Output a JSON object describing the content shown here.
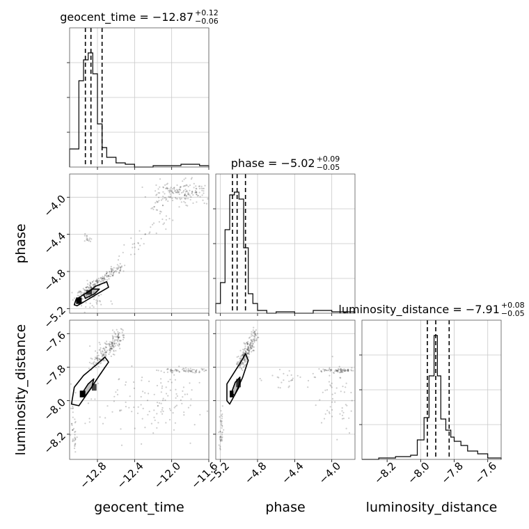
{
  "chart_data": {
    "type": "corner",
    "parameters": [
      "geocent_time",
      "phase",
      "luminosity_distance"
    ],
    "titles": [
      {
        "param": "geocent_time",
        "prefix": "geocent_time = ",
        "value": "−12.87",
        "plus": "+0.12",
        "minus": "−0.06"
      },
      {
        "param": "phase",
        "prefix": "phase = ",
        "value": "−5.02",
        "plus": "+0.09",
        "minus": "−0.05"
      },
      {
        "param": "luminosity_distance",
        "prefix": "luminosity_distance = ",
        "value": "−7.91",
        "plus": "+0.08",
        "minus": "−0.05"
      }
    ],
    "axis_ranges": {
      "geocent_time": [
        -13.1,
        -11.6
      ],
      "phase": [
        -5.25,
        -3.75
      ],
      "luminosity_distance": [
        -8.35,
        -7.52
      ]
    },
    "ticks": {
      "geocent_time": [
        -12.8,
        -12.4,
        -12.0,
        -11.6
      ],
      "phase": [
        -5.2,
        -4.8,
        -4.4,
        -4.0
      ],
      "luminosity_distance": [
        -8.2,
        -8.0,
        -7.8,
        -7.6
      ]
    },
    "tick_labels": {
      "geocent_time": [
        "−12.8",
        "−12.4",
        "−12.0",
        "−11.6"
      ],
      "phase": [
        "−5.2",
        "−4.8",
        "−4.4",
        "−4.0"
      ],
      "luminosity_distance": [
        "−8.2",
        "−8.0",
        "−7.8",
        "−7.6"
      ]
    },
    "quantiles": {
      "geocent_time": [
        -12.93,
        -12.87,
        -12.75
      ],
      "phase": [
        -5.07,
        -5.02,
        -4.93
      ],
      "luminosity_distance": [
        -7.96,
        -7.91,
        -7.83
      ]
    },
    "histograms": {
      "geocent_time": {
        "edges": [
          -13.1,
          -13.0,
          -12.95,
          -12.9,
          -12.85,
          -12.8,
          -12.75,
          -12.7,
          -12.6,
          -12.5,
          -12.4,
          -12.3,
          -12.2,
          -11.9,
          -11.7,
          -11.6
        ],
        "counts": [
          0.13,
          0.62,
          0.77,
          0.82,
          0.67,
          0.31,
          0.14,
          0.07,
          0.03,
          0.02,
          0.0,
          0.0,
          0.01,
          0.02,
          0.01
        ]
      },
      "phase": {
        "edges": [
          -5.25,
          -5.2,
          -5.15,
          -5.1,
          -5.05,
          -5.0,
          -4.95,
          -4.9,
          -4.85,
          -4.8,
          -4.7,
          -4.6,
          -4.4,
          -4.2,
          -4.0,
          -3.75
        ],
        "counts": [
          0.07,
          0.22,
          0.6,
          0.85,
          0.87,
          0.82,
          0.47,
          0.14,
          0.07,
          0.02,
          0.0,
          0.01,
          0.0,
          0.02,
          0.01
        ]
      },
      "luminosity_distance": {
        "edges": [
          -8.35,
          -8.25,
          -8.15,
          -8.06,
          -8.02,
          -7.98,
          -7.95,
          -7.92,
          -7.9,
          -7.88,
          -7.85,
          -7.82,
          -7.8,
          -7.76,
          -7.72,
          -7.66,
          -7.6,
          -7.52
        ],
        "counts": [
          0.0,
          0.01,
          0.02,
          0.03,
          0.14,
          0.3,
          0.6,
          0.89,
          0.6,
          0.29,
          0.21,
          0.16,
          0.13,
          0.1,
          0.06,
          0.04,
          0.01
        ]
      }
    },
    "contours": {
      "phase_vs_geocent_time": {
        "outer": [
          [
            -13.05,
            -5.16
          ],
          [
            -13.03,
            -5.1
          ],
          [
            -12.9,
            -5.02
          ],
          [
            -12.82,
            -4.96
          ],
          [
            -12.7,
            -4.91
          ],
          [
            -12.68,
            -4.97
          ],
          [
            -12.8,
            -5.04
          ],
          [
            -12.95,
            -5.13
          ],
          [
            -13.02,
            -5.17
          ]
        ],
        "inner": [
          [
            -12.95,
            -5.05
          ],
          [
            -12.85,
            -4.99
          ],
          [
            -12.78,
            -4.99
          ],
          [
            -12.83,
            -5.04
          ],
          [
            -12.93,
            -5.09
          ]
        ],
        "dense": [
          [
            -13.03,
            -5.15,
            -12.97,
            -5.08
          ],
          [
            -12.92,
            -5.05,
            -12.86,
            -5.0
          ]
        ]
      },
      "luminosity_distance_vs_geocent_time": {
        "outer": [
          [
            -13.08,
            -8.02
          ],
          [
            -13.05,
            -7.92
          ],
          [
            -12.95,
            -7.85
          ],
          [
            -12.8,
            -7.78
          ],
          [
            -12.72,
            -7.74
          ],
          [
            -12.68,
            -7.77
          ],
          [
            -12.78,
            -7.85
          ],
          [
            -12.9,
            -7.95
          ],
          [
            -13.0,
            -8.03
          ]
        ],
        "inner": [
          [
            -12.97,
            -7.96
          ],
          [
            -12.9,
            -7.9
          ],
          [
            -12.84,
            -7.87
          ],
          [
            -12.86,
            -7.92
          ],
          [
            -12.93,
            -7.97
          ]
        ],
        "dense": [
          [
            -12.99,
            -7.98,
            -12.93,
            -7.94
          ],
          [
            -12.86,
            -7.94,
            -12.81,
            -7.9
          ]
        ]
      },
      "luminosity_distance_vs_phase": {
        "outer": [
          [
            -5.13,
            -8.0
          ],
          [
            -5.13,
            -7.9
          ],
          [
            -5.05,
            -7.83
          ],
          [
            -4.97,
            -7.76
          ],
          [
            -4.93,
            -7.72
          ],
          [
            -4.9,
            -7.76
          ],
          [
            -4.96,
            -7.86
          ],
          [
            -5.05,
            -7.97
          ],
          [
            -5.1,
            -8.02
          ]
        ],
        "inner": [
          [
            -5.08,
            -7.95
          ],
          [
            -5.04,
            -7.89
          ],
          [
            -4.99,
            -7.86
          ],
          [
            -5.0,
            -7.92
          ],
          [
            -5.05,
            -7.97
          ]
        ],
        "dense": [
          [
            -5.1,
            -7.98,
            -5.06,
            -7.94
          ],
          [
            -5.03,
            -7.92,
            -4.98,
            -7.87
          ]
        ]
      }
    },
    "scatter_clusters": [
      {
        "panel": "phase_vs_geocent_time",
        "type": "line",
        "from": [
          -13.0,
          -5.05
        ],
        "to": [
          -12.55,
          -4.75
        ],
        "spread": [
          0.03,
          0.02
        ],
        "n": 170
      },
      {
        "panel": "phase_vs_geocent_time",
        "type": "line",
        "from": [
          -12.6,
          -4.7
        ],
        "to": [
          -12.05,
          -4.25
        ],
        "spread": [
          0.04,
          0.03
        ],
        "n": 35
      },
      {
        "panel": "phase_vs_geocent_time",
        "type": "line",
        "from": [
          -12.2,
          -4.15
        ],
        "to": [
          -11.95,
          -3.83
        ],
        "spread": [
          0.04,
          0.03
        ],
        "n": 40
      },
      {
        "panel": "phase_vs_geocent_time",
        "type": "blob",
        "center": [
          -11.85,
          -3.95
        ],
        "spread": [
          0.15,
          0.07
        ],
        "n": 150
      },
      {
        "panel": "phase_vs_geocent_time",
        "type": "blob",
        "center": [
          -12.9,
          -4.45
        ],
        "spread": [
          0.03,
          0.03
        ],
        "n": 15
      },
      {
        "panel": "phase_vs_geocent_time",
        "type": "blob",
        "center": [
          -12.9,
          -5.1
        ],
        "spread": [
          0.12,
          0.05
        ],
        "n": 40
      },
      {
        "panel": "luminosity_distance_vs_geocent_time",
        "type": "line",
        "from": [
          -12.82,
          -7.78
        ],
        "to": [
          -12.55,
          -7.6
        ],
        "spread": [
          0.04,
          0.02
        ],
        "n": 200
      },
      {
        "panel": "luminosity_distance_vs_geocent_time",
        "type": "line",
        "from": [
          -13.08,
          -8.05
        ],
        "to": [
          -13.04,
          -8.3
        ],
        "spread": [
          0.015,
          0.03
        ],
        "n": 40
      },
      {
        "panel": "luminosity_distance_vs_geocent_time",
        "type": "line",
        "from": [
          -12.1,
          -7.82
        ],
        "to": [
          -11.6,
          -7.82
        ],
        "spread": [
          0.05,
          0.006
        ],
        "n": 70
      },
      {
        "panel": "luminosity_distance_vs_geocent_time",
        "type": "blob",
        "center": [
          -12.0,
          -8.0
        ],
        "spread": [
          0.2,
          0.1
        ],
        "n": 70
      },
      {
        "panel": "luminosity_distance_vs_geocent_time",
        "type": "blob",
        "center": [
          -12.5,
          -8.0
        ],
        "spread": [
          0.3,
          0.12
        ],
        "n": 60
      },
      {
        "panel": "luminosity_distance_vs_phase",
        "type": "line",
        "from": [
          -5.0,
          -7.8
        ],
        "to": [
          -4.82,
          -7.6
        ],
        "spread": [
          0.025,
          0.02
        ],
        "n": 200
      },
      {
        "panel": "luminosity_distance_vs_phase",
        "type": "line",
        "from": [
          -5.18,
          -8.05
        ],
        "to": [
          -5.2,
          -8.28
        ],
        "spread": [
          0.01,
          0.03
        ],
        "n": 40
      },
      {
        "panel": "luminosity_distance_vs_phase",
        "type": "line",
        "from": [
          -4.1,
          -7.82
        ],
        "to": [
          -3.78,
          -7.82
        ],
        "spread": [
          0.04,
          0.006
        ],
        "n": 70
      },
      {
        "panel": "luminosity_distance_vs_phase",
        "type": "blob",
        "center": [
          -3.95,
          -8.0
        ],
        "spread": [
          0.12,
          0.1
        ],
        "n": 60
      },
      {
        "panel": "luminosity_distance_vs_phase",
        "type": "blob",
        "center": [
          -4.5,
          -7.87
        ],
        "spread": [
          0.12,
          0.03
        ],
        "n": 25
      }
    ],
    "grid": true
  }
}
